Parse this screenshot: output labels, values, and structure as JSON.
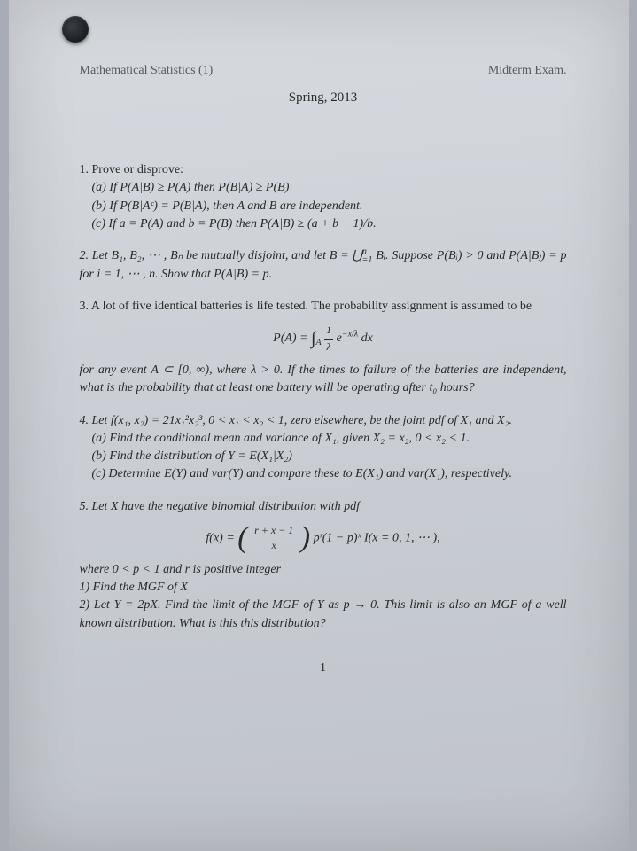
{
  "header": {
    "left": "Mathematical Statistics (1)",
    "right": "Midterm Exam.",
    "subtitle": "Spring, 2013"
  },
  "q1": {
    "lead": "1. Prove or disprove:",
    "a": "(a) If P(A|B) ≥ P(A) then P(B|A) ≥ P(B)",
    "b": "(b) If P(B|Aᶜ) = P(B|A), then A and B are independent.",
    "c": "(c) If a = P(A) and b = P(B) then P(A|B) ≥ (a + b − 1)/b."
  },
  "q2": {
    "text_a": "2. Let B₁, B₂, ⋯ , Bₙ be mutually disjoint, and let B = ⋃",
    "text_b": " Bᵢ. Suppose P(Bᵢ) > 0 and P(A|Bⱼ) = p for i = 1, ⋯ , n. Show that P(A|B) = p.",
    "union_sup": "n",
    "union_sub": "i=1"
  },
  "q3": {
    "lead": "3. A lot of five identical batteries is life tested. The probability assignment is assumed to be",
    "disp_lhs": "P(A) = ",
    "int_sub": "A",
    "frac_num": "1",
    "frac_den": "λ",
    "exp": "−x/λ",
    "dx": "dx",
    "tail": "for any event A ⊂ [0, ∞), where λ > 0. If the times to failure of the batteries are independent, what is the probability that at least one battery will be operating after t₀ hours?"
  },
  "q4": {
    "lead": "4. Let f(x₁, x₂) = 21x₁²x₂³, 0 < x₁ < x₂ < 1, zero elsewhere, be the joint pdf of X₁ and X₂.",
    "a": "(a) Find the conditional mean and variance of X₁, given X₂ = x₂, 0 < x₂ < 1.",
    "b": "(b) Find the distribution of Y = E(X₁|X₂)",
    "c": "(c) Determine E(Y) and var(Y) and compare these to E(X₁) and var(X₁), respectively."
  },
  "q5": {
    "lead": "5. Let X have the negative binomial distribution with pdf",
    "disp_lhs": "f(x) = ",
    "binom_top": "r + x − 1",
    "binom_bot": "x",
    "disp_rhs": " pʳ(1 − p)ˣ I(x = 0, 1, ⋯ ),",
    "tail1": "where 0 < p < 1 and r is positive integer",
    "tail2": "1) Find the MGF of X",
    "tail3": "2) Let Y = 2pX. Find the limit of the MGF of Y as p → 0. This limit is also an MGF of a well known distribution. What is this this distribution?"
  },
  "pageno": "1"
}
